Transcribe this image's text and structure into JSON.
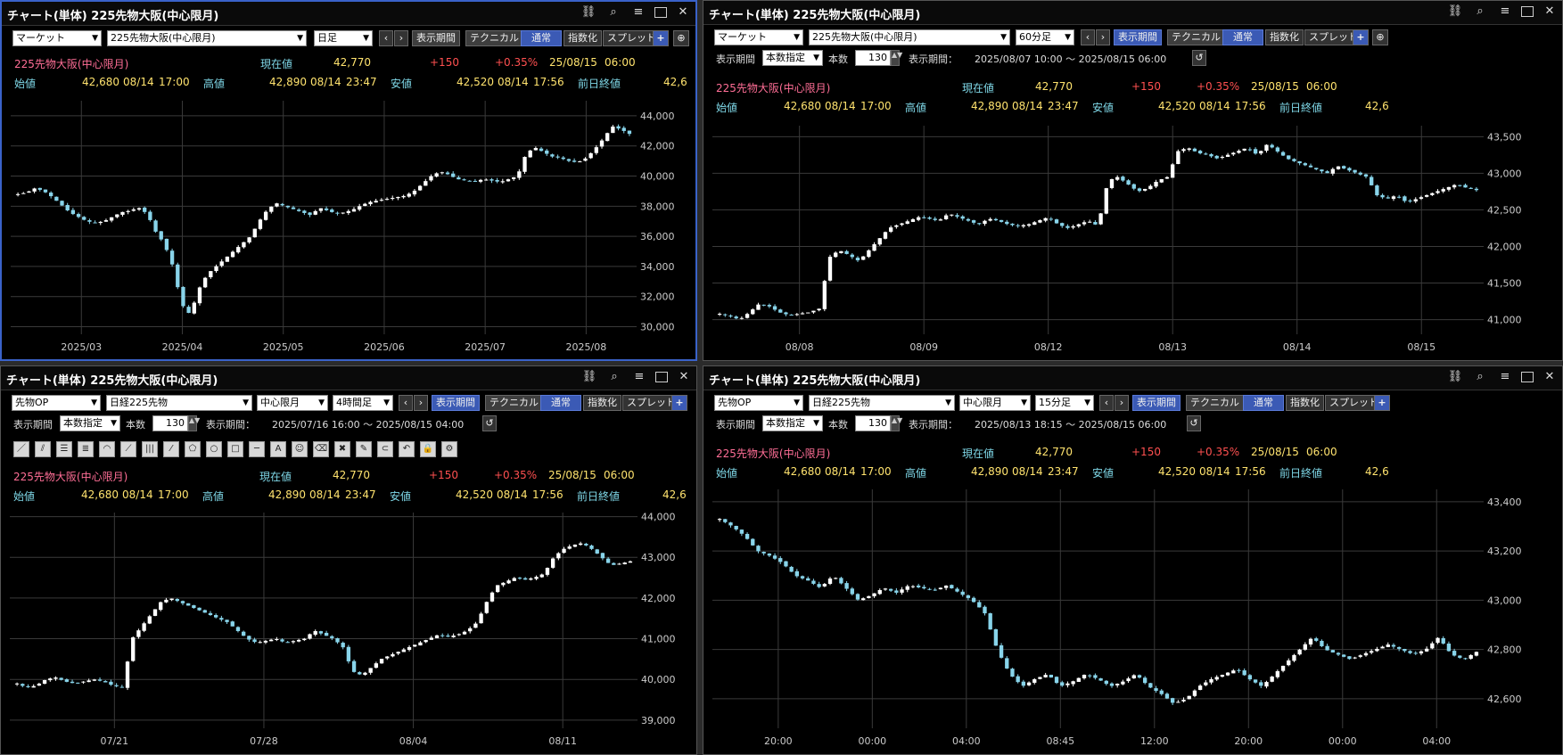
{
  "common": {
    "title": "チャート(単体) 225先物大阪(中心限月)",
    "symbol": "225先物大阪(中心限月)",
    "labels": {
      "current": "現在値",
      "open": "始値",
      "high": "高値",
      "low": "安値",
      "prev_close": "前日終値",
      "period_btn": "表示期間",
      "tech_btn": "テクニカル",
      "normal_btn": "通常",
      "index_btn": "指数化",
      "spread_btn": "スプレッド",
      "period_label": "表示期間",
      "count_label": "本数",
      "range_label": "表示期間：",
      "count_mode": "本数指定",
      "count": "130"
    },
    "quote": {
      "current": "42,770",
      "change": "+150",
      "change_pct": "+0.35%",
      "date": "25/08/15",
      "time": "06:00",
      "open": "42,680",
      "open_date": "08/14",
      "open_time": "17:00",
      "high": "42,890",
      "high_date": "08/14",
      "high_time": "23:47",
      "low": "42,520",
      "low_date": "08/14",
      "low_time": "17:56",
      "prev_close": "42,6"
    },
    "colors": {
      "up": "#ffffff",
      "down": "#88d4ea",
      "accent": "#3b5ab5",
      "border_active": "#3a62c9"
    },
    "tools": [
      "line-tool",
      "parallel-tool",
      "horizontal-lines-tool",
      "multi-lines-tool",
      "arc-tool",
      "fan-tool",
      "vertical-lines-tool",
      "channel-tool",
      "pentagon-tool",
      "circle-tool",
      "rectangle-tool",
      "hline-tool",
      "text-tool",
      "icon-tool",
      "eraser-tool",
      "delete-tool",
      "pencil-tool",
      "magnet-tool",
      "undo-tool",
      "lock-tool",
      "settings-tool"
    ]
  },
  "panels": [
    {
      "selects": [
        "マーケット",
        "225先物大阪(中心限月)",
        "日足"
      ],
      "chart_data": {
        "type": "candlestick",
        "x_labels": [
          "2025/03",
          "2025/04",
          "2025/05",
          "2025/06",
          "2025/07",
          "2025/08"
        ],
        "y_ticks": [
          "44,000",
          "42,000",
          "40,000",
          "38,000",
          "36,000",
          "34,000",
          "32,000",
          "30,000"
        ],
        "ylim": [
          29500,
          45000
        ],
        "keypoints": [
          38800,
          38900,
          39200,
          39000,
          38600,
          38100,
          37600,
          37300,
          37000,
          36900,
          37000,
          37300,
          37600,
          37700,
          37900,
          37500,
          36300,
          35500,
          34000,
          31500,
          30800,
          32500,
          33500,
          34000,
          34500,
          35000,
          35500,
          36000,
          37000,
          37800,
          38200,
          38000,
          37800,
          37600,
          37400,
          37900,
          37700,
          37500,
          37600,
          37800,
          38100,
          38300,
          38400,
          38500,
          38600,
          38700,
          39000,
          39500,
          40000,
          40300,
          40100,
          39800,
          39700,
          39600,
          39800,
          39700,
          39600,
          39800,
          40000,
          41500,
          41900,
          41600,
          41300,
          41200,
          41000,
          40900,
          41200,
          41800,
          42500,
          43300,
          43100,
          42800
        ]
      }
    },
    {
      "selects": [
        "マーケット",
        "225先物大阪(中心限月)",
        "60分足"
      ],
      "range_text": "2025/08/07 10:00 ～ 2025/08/15 06:00",
      "chart_data": {
        "type": "candlestick",
        "x_labels": [
          "08/08",
          "08/09",
          "08/12",
          "08/13",
          "08/14",
          "08/15"
        ],
        "y_ticks": [
          "43,500",
          "43,000",
          "42,500",
          "42,000",
          "41,500",
          "41,000"
        ],
        "ylim": [
          40800,
          43650
        ],
        "keypoints": [
          41080,
          41050,
          41000,
          41100,
          41220,
          41180,
          41100,
          41060,
          41080,
          41100,
          41150,
          41850,
          41950,
          41880,
          41800,
          41950,
          42100,
          42250,
          42300,
          42350,
          42400,
          42380,
          42350,
          42450,
          42400,
          42350,
          42300,
          42380,
          42350,
          42300,
          42280,
          42300,
          42350,
          42400,
          42300,
          42250,
          42300,
          42350,
          42280,
          42900,
          42950,
          42850,
          42750,
          42800,
          42900,
          42950,
          43300,
          43350,
          43280,
          43250,
          43200,
          43250,
          43300,
          43350,
          43250,
          43400,
          43300,
          43200,
          43150,
          43100,
          43050,
          43000,
          43100,
          43050,
          43000,
          42950,
          42700,
          42650,
          42700,
          42600,
          42650,
          42700,
          42750,
          42800,
          42850,
          42800,
          42770
        ]
      }
    },
    {
      "selects": [
        "先物OP",
        "日経225先物",
        "中心限月",
        "4時間足"
      ],
      "range_text": "2025/07/16 16:00 ～ 2025/08/15 04:00",
      "chart_data": {
        "type": "candlestick",
        "x_labels": [
          "07/21",
          "07/28",
          "08/04",
          "08/11"
        ],
        "y_ticks": [
          "44,000",
          "43,000",
          "42,000",
          "41,000",
          "40,000",
          "39,000"
        ],
        "ylim": [
          38800,
          44100
        ],
        "keypoints": [
          39900,
          39800,
          39850,
          40000,
          40050,
          39950,
          39900,
          39950,
          40000,
          39950,
          39850,
          39800,
          41000,
          41300,
          41600,
          41900,
          42000,
          41900,
          41800,
          41700,
          41600,
          41500,
          41400,
          41200,
          41000,
          40900,
          40950,
          41000,
          40900,
          40950,
          41000,
          41200,
          41100,
          41000,
          40800,
          40200,
          40100,
          40300,
          40500,
          40600,
          40700,
          40800,
          40900,
          41000,
          41100,
          41050,
          41100,
          41200,
          41400,
          41900,
          42300,
          42400,
          42500,
          42450,
          42500,
          42600,
          43000,
          43200,
          43300,
          43350,
          43200,
          43000,
          42800,
          42850,
          42900
        ]
      }
    },
    {
      "selects": [
        "先物OP",
        "日経225先物",
        "中心限月",
        "15分足"
      ],
      "range_text": "2025/08/13 18:15 ～ 2025/08/15 06:00",
      "chart_data": {
        "type": "candlestick",
        "x_labels": [
          "20:00",
          "00:00",
          "04:00",
          "08:45",
          "12:00",
          "20:00",
          "00:00",
          "04:00"
        ],
        "y_ticks": [
          "43,400",
          "43,200",
          "43,000",
          "42,800",
          "42,600"
        ],
        "ylim": [
          42480,
          43450
        ],
        "keypoints": [
          43330,
          43300,
          43260,
          43200,
          43180,
          43150,
          43100,
          43080,
          43050,
          43100,
          43050,
          43000,
          43020,
          43050,
          43030,
          43060,
          43050,
          43040,
          43060,
          43030,
          43000,
          42950,
          42800,
          42700,
          42650,
          42680,
          42700,
          42650,
          42670,
          42700,
          42680,
          42650,
          42670,
          42700,
          42650,
          42620,
          42580,
          42600,
          42650,
          42680,
          42700,
          42720,
          42680,
          42650,
          42700,
          42750,
          42800,
          42850,
          42800,
          42780,
          42760,
          42780,
          42800,
          42820,
          42800,
          42780,
          42800,
          42850,
          42780,
          42760,
          42790
        ]
      }
    }
  ]
}
